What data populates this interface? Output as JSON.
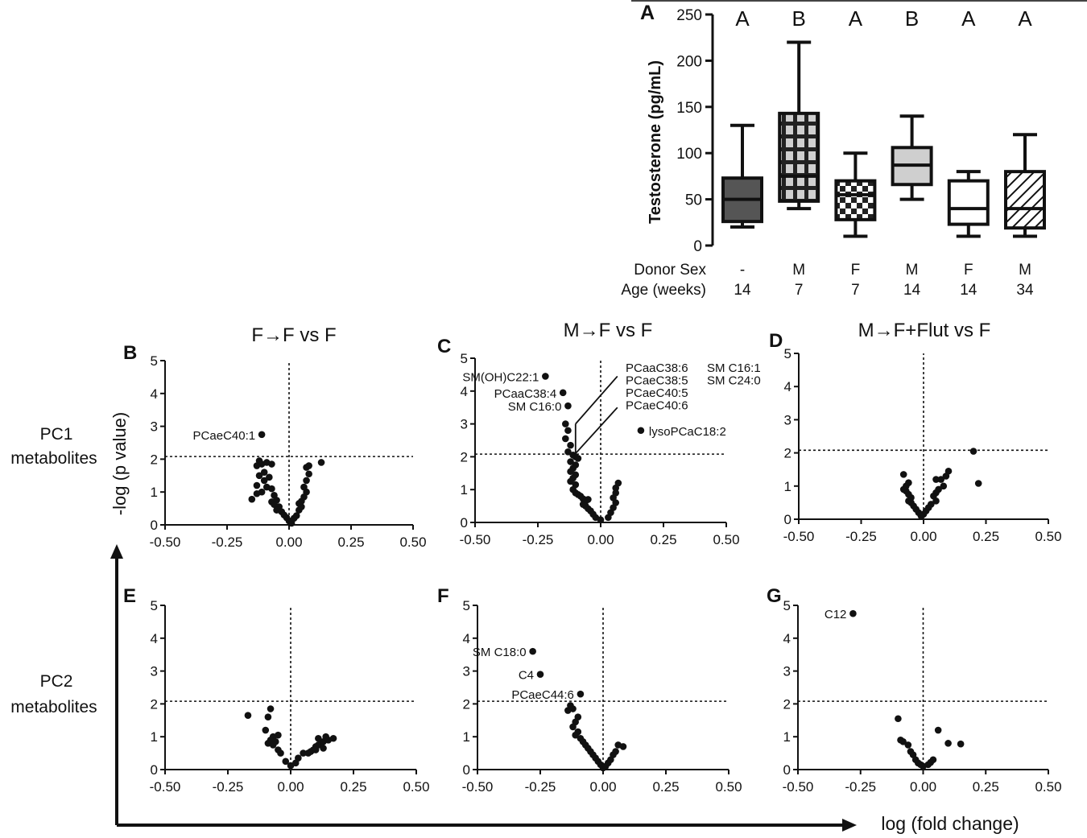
{
  "labels": {
    "row_pc1": [
      "PC1",
      "metabolites"
    ],
    "row_pc2": [
      "PC2",
      "metabolites"
    ],
    "y_axis_global": "-log (p value)",
    "x_axis_global": "log (fold change)",
    "donor_sex_label": "Donor Sex",
    "age_label": "Age (weeks)"
  },
  "chart_data": [
    {
      "id": "A",
      "panel_letter": "A",
      "type": "box",
      "ylabel": "Testosterone (pg/mL)",
      "ylim": [
        0,
        250
      ],
      "yticks": [
        0,
        50,
        100,
        150,
        200,
        250
      ],
      "groups": [
        {
          "donor_sex": "-",
          "age": "14",
          "letter": "A",
          "pattern": "dark",
          "min": 20,
          "q1": 26,
          "median": 50,
          "q3": 73,
          "max": 130
        },
        {
          "donor_sex": "M",
          "age": "7",
          "letter": "B",
          "pattern": "grid",
          "min": 40,
          "q1": 48,
          "median": 75,
          "q3": 143,
          "max": 220
        },
        {
          "donor_sex": "F",
          "age": "7",
          "letter": "A",
          "pattern": "checker",
          "min": 10,
          "q1": 28,
          "median": 55,
          "q3": 70,
          "max": 100
        },
        {
          "donor_sex": "M",
          "age": "14",
          "letter": "B",
          "pattern": "light",
          "min": 50,
          "q1": 66,
          "median": 87,
          "q3": 106,
          "max": 140
        },
        {
          "donor_sex": "F",
          "age": "14",
          "letter": "A",
          "pattern": "white",
          "min": 10,
          "q1": 23,
          "median": 40,
          "q3": 70,
          "max": 80
        },
        {
          "donor_sex": "M",
          "age": "34",
          "letter": "A",
          "pattern": "hatch",
          "min": 10,
          "q1": 19,
          "median": 40,
          "q3": 80,
          "max": 120
        }
      ]
    },
    {
      "id": "B",
      "panel_letter": "B",
      "type": "scatter",
      "title": "F→F vs F",
      "xlim": [
        -0.5,
        0.5
      ],
      "ylim": [
        0,
        5
      ],
      "threshold": 2.08,
      "xticks": [
        "-0.50",
        "-0.25",
        "0.00",
        "0.25",
        "0.50"
      ],
      "yticks": [
        "0",
        "1",
        "2",
        "3",
        "4",
        "5"
      ],
      "points": [
        [
          -0.11,
          2.75
        ],
        [
          -0.12,
          1.95
        ],
        [
          -0.11,
          1.85
        ],
        [
          -0.13,
          1.8
        ],
        [
          -0.09,
          1.9
        ],
        [
          -0.07,
          1.85
        ],
        [
          -0.1,
          1.6
        ],
        [
          -0.12,
          1.5
        ],
        [
          -0.08,
          1.45
        ],
        [
          -0.1,
          1.35
        ],
        [
          -0.13,
          1.2
        ],
        [
          -0.09,
          1.15
        ],
        [
          -0.07,
          1.1
        ],
        [
          -0.11,
          1.0
        ],
        [
          -0.13,
          0.95
        ],
        [
          -0.15,
          0.78
        ],
        [
          -0.06,
          0.9
        ],
        [
          -0.05,
          0.75
        ],
        [
          -0.07,
          0.7
        ],
        [
          -0.06,
          0.62
        ],
        [
          -0.04,
          0.55
        ],
        [
          -0.05,
          0.45
        ],
        [
          -0.03,
          0.4
        ],
        [
          -0.02,
          0.3
        ],
        [
          -0.01,
          0.22
        ],
        [
          0.0,
          0.12
        ],
        [
          0.01,
          0.05
        ],
        [
          0.02,
          0.2
        ],
        [
          0.03,
          0.28
        ],
        [
          0.04,
          0.45
        ],
        [
          0.05,
          0.55
        ],
        [
          0.04,
          0.65
        ],
        [
          0.05,
          0.72
        ],
        [
          0.06,
          0.85
        ],
        [
          0.07,
          1.0
        ],
        [
          0.06,
          1.15
        ],
        [
          0.07,
          1.35
        ],
        [
          0.08,
          1.55
        ],
        [
          0.07,
          1.75
        ],
        [
          0.08,
          1.8
        ],
        [
          0.13,
          1.9
        ]
      ],
      "annotations": [
        {
          "text": "PCaeC40:1",
          "x": -0.11,
          "y": 2.75
        }
      ],
      "callouts": []
    },
    {
      "id": "C",
      "panel_letter": "C",
      "type": "scatter",
      "title": "M→F vs F",
      "xlim": [
        -0.5,
        0.5
      ],
      "ylim": [
        0,
        5
      ],
      "threshold": 2.08,
      "xticks": [
        "-0.50",
        "-0.25",
        "0.00",
        "0.25",
        "0.50"
      ],
      "yticks": [
        "0",
        "1",
        "2",
        "3",
        "4",
        "5"
      ],
      "points": [
        [
          -0.22,
          4.45
        ],
        [
          -0.15,
          3.95
        ],
        [
          -0.13,
          3.55
        ],
        [
          -0.14,
          3.0
        ],
        [
          -0.13,
          2.8
        ],
        [
          -0.14,
          2.55
        ],
        [
          -0.12,
          2.35
        ],
        [
          -0.13,
          2.15
        ],
        [
          -0.11,
          2.05
        ],
        [
          -0.1,
          2.0
        ],
        [
          -0.09,
          1.95
        ],
        [
          -0.12,
          1.85
        ],
        [
          -0.1,
          1.75
        ],
        [
          -0.11,
          1.65
        ],
        [
          -0.12,
          1.55
        ],
        [
          -0.1,
          1.45
        ],
        [
          -0.11,
          1.35
        ],
        [
          -0.12,
          1.25
        ],
        [
          -0.1,
          1.15
        ],
        [
          -0.11,
          1.0
        ],
        [
          -0.1,
          0.9
        ],
        [
          -0.09,
          0.85
        ],
        [
          -0.08,
          0.8
        ],
        [
          -0.07,
          0.72
        ],
        [
          -0.06,
          0.65
        ],
        [
          -0.05,
          0.7
        ],
        [
          -0.07,
          0.55
        ],
        [
          -0.06,
          0.5
        ],
        [
          -0.05,
          0.42
        ],
        [
          -0.04,
          0.35
        ],
        [
          -0.03,
          0.25
        ],
        [
          -0.02,
          0.15
        ],
        [
          0.0,
          0.08
        ],
        [
          0.03,
          0.15
        ],
        [
          0.04,
          0.3
        ],
        [
          0.05,
          0.45
        ],
        [
          0.06,
          0.6
        ],
        [
          0.05,
          0.75
        ],
        [
          0.06,
          0.9
        ],
        [
          0.06,
          1.05
        ],
        [
          0.07,
          1.2
        ],
        [
          0.16,
          2.8
        ]
      ],
      "annotations": [
        {
          "text": "SM(OH)C22:1",
          "x": -0.22,
          "y": 4.45
        },
        {
          "text": "PCaaC38:4",
          "x": -0.15,
          "y": 3.95
        },
        {
          "text": "SM C16:0",
          "x": -0.13,
          "y": 3.55
        },
        {
          "text": "lysoPCaC18:2",
          "x": 0.16,
          "y": 2.8
        }
      ],
      "callouts": [
        {
          "lines": [
            "PCaaC38:6",
            "PCaeC38:5",
            "PCaeC40:5",
            "PCaeC40:6"
          ]
        },
        {
          "lines": [
            "SM C16:1",
            "SM C24:0"
          ]
        }
      ]
    },
    {
      "id": "D",
      "panel_letter": "D",
      "type": "scatter",
      "title": "M→F+Flut vs F",
      "xlim": [
        -0.5,
        0.5
      ],
      "ylim": [
        0,
        5
      ],
      "threshold": 2.08,
      "xticks": [
        "-0.50",
        "-0.25",
        "0.00",
        "0.25",
        "0.50"
      ],
      "yticks": [
        "0",
        "1",
        "2",
        "3",
        "4",
        "5"
      ],
      "points": [
        [
          0.2,
          2.05
        ],
        [
          0.22,
          1.08
        ],
        [
          0.1,
          1.45
        ],
        [
          0.09,
          1.3
        ],
        [
          0.07,
          1.2
        ],
        [
          0.05,
          1.2
        ],
        [
          0.08,
          1.0
        ],
        [
          0.06,
          0.9
        ],
        [
          0.05,
          0.8
        ],
        [
          0.04,
          0.7
        ],
        [
          0.05,
          0.55
        ],
        [
          0.03,
          0.45
        ],
        [
          0.02,
          0.35
        ],
        [
          0.01,
          0.25
        ],
        [
          0.0,
          0.15
        ],
        [
          -0.01,
          0.1
        ],
        [
          -0.02,
          0.2
        ],
        [
          -0.03,
          0.3
        ],
        [
          -0.04,
          0.4
        ],
        [
          -0.05,
          0.5
        ],
        [
          -0.06,
          0.55
        ],
        [
          -0.05,
          0.65
        ],
        [
          -0.06,
          0.75
        ],
        [
          -0.07,
          0.85
        ],
        [
          -0.08,
          0.9
        ],
        [
          -0.07,
          1.0
        ],
        [
          -0.06,
          1.1
        ],
        [
          -0.08,
          1.35
        ]
      ],
      "annotations": [],
      "callouts": []
    },
    {
      "id": "E",
      "panel_letter": "E",
      "type": "scatter",
      "title": "",
      "xlim": [
        -0.5,
        0.5
      ],
      "ylim": [
        0,
        5
      ],
      "threshold": 2.08,
      "xticks": [
        "-0.50",
        "-0.25",
        "0.00",
        "0.25",
        "0.50"
      ],
      "yticks": [
        "0",
        "1",
        "2",
        "3",
        "4",
        "5"
      ],
      "points": [
        [
          -0.17,
          1.65
        ],
        [
          -0.08,
          1.85
        ],
        [
          -0.09,
          1.6
        ],
        [
          -0.1,
          1.2
        ],
        [
          -0.07,
          1.0
        ],
        [
          -0.05,
          1.05
        ],
        [
          -0.08,
          0.9
        ],
        [
          -0.06,
          0.85
        ],
        [
          -0.09,
          0.8
        ],
        [
          -0.07,
          0.75
        ],
        [
          -0.05,
          0.6
        ],
        [
          -0.04,
          0.5
        ],
        [
          -0.02,
          0.25
        ],
        [
          0.0,
          0.12
        ],
        [
          0.02,
          0.2
        ],
        [
          0.03,
          0.35
        ],
        [
          0.05,
          0.5
        ],
        [
          0.07,
          0.5
        ],
        [
          0.08,
          0.55
        ],
        [
          0.09,
          0.6
        ],
        [
          0.1,
          0.7
        ],
        [
          0.11,
          0.75
        ],
        [
          0.12,
          0.8
        ],
        [
          0.13,
          0.85
        ],
        [
          0.14,
          1.0
        ],
        [
          0.11,
          0.95
        ],
        [
          0.15,
          0.9
        ],
        [
          0.17,
          0.95
        ],
        [
          0.13,
          0.65
        ],
        [
          0.1,
          0.6
        ]
      ],
      "annotations": [],
      "callouts": []
    },
    {
      "id": "F",
      "panel_letter": "F",
      "type": "scatter",
      "title": "",
      "xlim": [
        -0.5,
        0.5
      ],
      "ylim": [
        0,
        5
      ],
      "threshold": 2.08,
      "xticks": [
        "-0.50",
        "-0.25",
        "0.00",
        "0.25",
        "0.50"
      ],
      "yticks": [
        "0",
        "1",
        "2",
        "3",
        "4",
        "5"
      ],
      "points": [
        [
          -0.28,
          3.6
        ],
        [
          -0.25,
          2.9
        ],
        [
          -0.09,
          2.3
        ],
        [
          -0.13,
          1.95
        ],
        [
          -0.12,
          1.85
        ],
        [
          -0.14,
          1.8
        ],
        [
          -0.1,
          1.6
        ],
        [
          -0.11,
          1.45
        ],
        [
          -0.12,
          1.3
        ],
        [
          -0.1,
          1.15
        ],
        [
          -0.11,
          1.05
        ],
        [
          -0.09,
          0.95
        ],
        [
          -0.08,
          0.85
        ],
        [
          -0.07,
          0.75
        ],
        [
          -0.06,
          0.65
        ],
        [
          -0.05,
          0.55
        ],
        [
          -0.04,
          0.45
        ],
        [
          -0.03,
          0.35
        ],
        [
          -0.02,
          0.25
        ],
        [
          -0.01,
          0.15
        ],
        [
          0.0,
          0.05
        ],
        [
          0.01,
          0.1
        ],
        [
          0.02,
          0.2
        ],
        [
          0.03,
          0.3
        ],
        [
          0.04,
          0.45
        ],
        [
          0.05,
          0.55
        ],
        [
          0.06,
          0.75
        ],
        [
          0.08,
          0.7
        ]
      ],
      "annotations": [
        {
          "text": "SM C18:0",
          "x": -0.28,
          "y": 3.6
        },
        {
          "text": "C4",
          "x": -0.25,
          "y": 2.9
        },
        {
          "text": "PCaeC44:6",
          "x": -0.09,
          "y": 2.3
        }
      ],
      "callouts": []
    },
    {
      "id": "G",
      "panel_letter": "G",
      "type": "scatter",
      "title": "",
      "xlim": [
        -0.5,
        0.5
      ],
      "ylim": [
        0,
        5
      ],
      "threshold": 2.08,
      "xticks": [
        "-0.50",
        "-0.25",
        "0.00",
        "0.25",
        "0.50"
      ],
      "yticks": [
        "0",
        "1",
        "2",
        "3",
        "4",
        "5"
      ],
      "points": [
        [
          -0.28,
          4.75
        ],
        [
          -0.1,
          1.55
        ],
        [
          -0.09,
          0.9
        ],
        [
          -0.08,
          0.85
        ],
        [
          -0.06,
          0.75
        ],
        [
          -0.05,
          0.55
        ],
        [
          -0.04,
          0.45
        ],
        [
          -0.03,
          0.3
        ],
        [
          -0.02,
          0.2
        ],
        [
          -0.01,
          0.15
        ],
        [
          0.0,
          0.1
        ],
        [
          0.02,
          0.15
        ],
        [
          0.03,
          0.22
        ],
        [
          0.04,
          0.3
        ],
        [
          0.06,
          1.2
        ],
        [
          0.1,
          0.8
        ],
        [
          0.15,
          0.78
        ]
      ],
      "annotations": [
        {
          "text": "C12",
          "x": -0.28,
          "y": 4.75
        }
      ],
      "callouts": []
    }
  ]
}
